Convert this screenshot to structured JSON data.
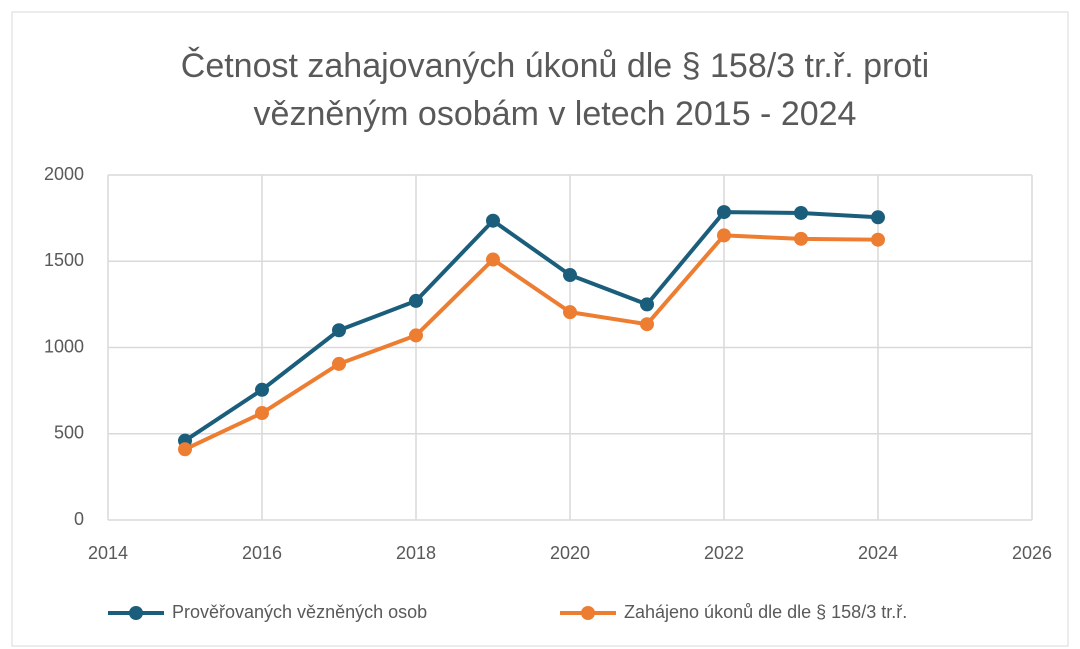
{
  "chart_data": {
    "type": "line",
    "title": [
      "Četnost zahajovaných úkonů dle § 158/3 tr.ř. proti",
      "vězněným osobám v letech 2015 - 2024"
    ],
    "x": [
      2015,
      2016,
      2017,
      2018,
      2019,
      2020,
      2021,
      2022,
      2023,
      2024
    ],
    "series": [
      {
        "name": "Prověřovaných vězněných osob",
        "color": "#1b5e7b",
        "values": [
          460,
          755,
          1100,
          1270,
          1735,
          1420,
          1250,
          1785,
          1780,
          1755
        ]
      },
      {
        "name": "Zahájeno úkonů dle dle § 158/3 tr.ř.",
        "color": "#ed7d31",
        "values": [
          410,
          620,
          905,
          1070,
          1510,
          1205,
          1135,
          1650,
          1630,
          1625
        ]
      }
    ],
    "xlim": [
      2014,
      2026
    ],
    "xticks": [
      2014,
      2016,
      2018,
      2020,
      2022,
      2024,
      2026
    ],
    "ylim": [
      0,
      2000
    ],
    "yticks": [
      0,
      500,
      1000,
      1500,
      2000
    ],
    "grid": true,
    "legend": "bottom"
  }
}
